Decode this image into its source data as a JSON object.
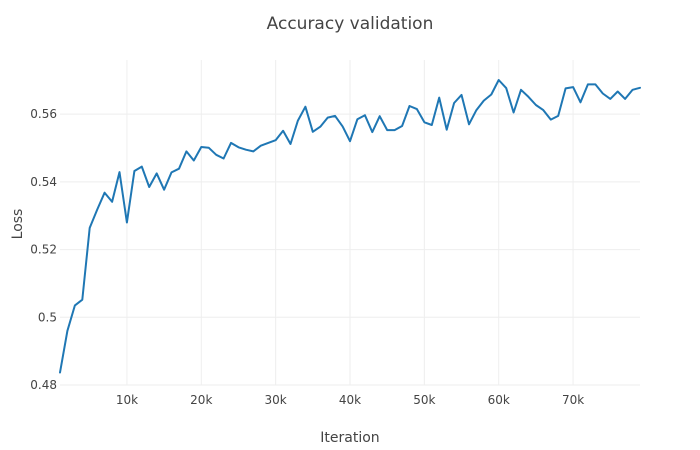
{
  "chart_data": {
    "type": "line",
    "title": "Accuracy validation",
    "xlabel": "Iteration",
    "ylabel": "Loss",
    "xlim": [
      1000,
      79000
    ],
    "ylim": [
      0.48,
      0.576
    ],
    "x_ticks": [
      10000,
      20000,
      30000,
      40000,
      50000,
      60000,
      70000
    ],
    "x_tick_labels": [
      "10k",
      "20k",
      "30k",
      "40k",
      "50k",
      "60k",
      "70k"
    ],
    "y_ticks": [
      0.48,
      0.5,
      0.52,
      0.54,
      0.56
    ],
    "y_tick_labels": [
      "0.48",
      "0.5",
      "0.52",
      "0.54",
      "0.56"
    ],
    "grid": true,
    "line_color": "#1f77b4",
    "series": [
      {
        "x": [
          1000,
          2000,
          3000,
          4000,
          5000,
          6000,
          7000,
          8000,
          9000,
          10000,
          11000,
          12000,
          13000,
          14000,
          15000,
          16000,
          17000,
          18000,
          19000,
          20000,
          21000,
          22000,
          23000,
          24000,
          25000,
          26000,
          27000,
          28000,
          29000,
          30000,
          31000,
          32000,
          33000,
          34000,
          35000,
          36000,
          37000,
          38000,
          39000,
          40000,
          41000,
          42000,
          43000,
          44000,
          45000,
          46000,
          47000,
          48000,
          49000,
          50000,
          51000,
          52000,
          53000,
          54000,
          55000,
          56000,
          57000,
          58000,
          59000,
          60000,
          61000,
          62000,
          63000,
          64000,
          65000,
          66000,
          67000,
          68000,
          69000,
          70000,
          71000,
          72000,
          73000,
          74000,
          75000,
          76000,
          77000,
          78000,
          79000
        ],
        "y": [
          0.4837,
          0.496,
          0.5035,
          0.5052,
          0.5264,
          0.5318,
          0.5368,
          0.5341,
          0.5429,
          0.528,
          0.5432,
          0.5445,
          0.5385,
          0.5425,
          0.5377,
          0.5428,
          0.5439,
          0.549,
          0.5463,
          0.5503,
          0.5501,
          0.548,
          0.5469,
          0.5515,
          0.5502,
          0.5495,
          0.549,
          0.5507,
          0.5515,
          0.5523,
          0.5551,
          0.5512,
          0.5581,
          0.5622,
          0.5548,
          0.5563,
          0.559,
          0.5595,
          0.5564,
          0.552,
          0.5585,
          0.5597,
          0.5547,
          0.5594,
          0.5553,
          0.5553,
          0.5565,
          0.5624,
          0.5615,
          0.5576,
          0.5568,
          0.5649,
          0.5554,
          0.5633,
          0.5657,
          0.557,
          0.5612,
          0.564,
          0.5658,
          0.5701,
          0.5677,
          0.5605,
          0.5672,
          0.5651,
          0.5627,
          0.5612,
          0.5584,
          0.5595,
          0.5676,
          0.568,
          0.5635,
          0.5688,
          0.5688,
          0.5661,
          0.5645,
          0.5667,
          0.5645,
          0.5672,
          0.5678
        ]
      }
    ]
  }
}
